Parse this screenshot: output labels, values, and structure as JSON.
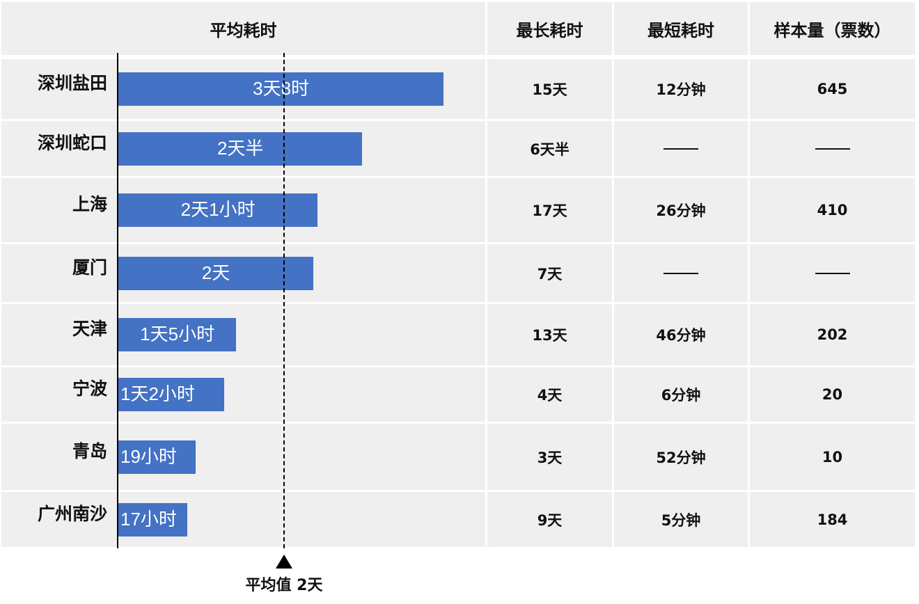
{
  "table": {
    "headers": {
      "avg": "平均耗时",
      "max": "最长耗时",
      "min": "最短耗时",
      "samples": "样本量（票数）"
    },
    "rows": [
      {
        "port": "深圳盐田",
        "avg_label": "3天8时",
        "max": "15天",
        "min": "12分钟",
        "samples": "645"
      },
      {
        "port": "深圳蛇口",
        "avg_label": "2天半",
        "max": "6天半",
        "min": "——",
        "samples": "——"
      },
      {
        "port": "上海",
        "avg_label": "2天1小时",
        "max": "17天",
        "min": "26分钟",
        "samples": "410"
      },
      {
        "port": "厦门",
        "avg_label": "2天",
        "max": "7天",
        "min": "——",
        "samples": "——"
      },
      {
        "port": "天津",
        "avg_label": "1天5小时",
        "max": "13天",
        "min": "46分钟",
        "samples": "202"
      },
      {
        "port": "宁波",
        "avg_label": "1天2小时",
        "max": "4天",
        "min": "6分钟",
        "samples": "20"
      },
      {
        "port": "青岛",
        "avg_label": "19小时",
        "max": "3天",
        "min": "52分钟",
        "samples": "10"
      },
      {
        "port": "广州南沙",
        "avg_label": "17小时",
        "max": "9天",
        "min": "5分钟",
        "samples": "184"
      }
    ]
  },
  "chart_data": {
    "type": "bar",
    "orientation": "horizontal",
    "unit": "hours",
    "categories": [
      "深圳盐田",
      "深圳蛇口",
      "上海",
      "厦门",
      "天津",
      "宁波",
      "青岛",
      "广州南沙"
    ],
    "values": [
      80,
      60,
      49,
      48,
      29,
      26,
      19,
      17
    ],
    "data_labels": [
      "3天8时",
      "2天半",
      "2天1小时",
      "2天",
      "1天5小时",
      "1天2小时",
      "19小时",
      "17小时"
    ],
    "bar_color": "#4472c4",
    "reference_line": {
      "value": 48,
      "label": "平均值 2天",
      "style": "dashed"
    }
  }
}
